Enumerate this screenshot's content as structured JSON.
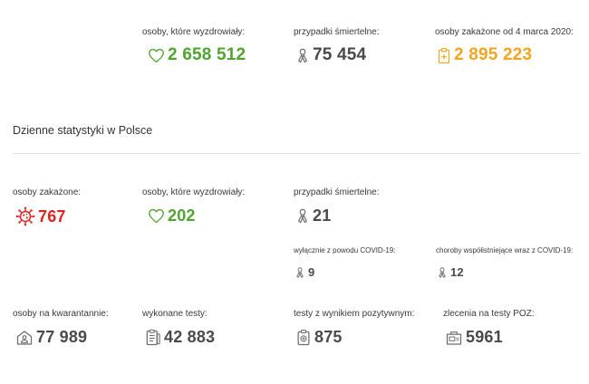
{
  "colors": {
    "recovered": "#4fa52f",
    "deaths": "#4a4a4a",
    "infected_total": "#f2a51f",
    "infected_daily": "#e0231f",
    "default_num": "#4a4a4a",
    "icon_grey": "#6e6e6e"
  },
  "totals": {
    "recovered": {
      "label": "osoby, które wyzdrowiały:",
      "value": "2 658 512",
      "icon": "heart-icon"
    },
    "deaths": {
      "label": "przypadki śmiertelne:",
      "value": "75 454",
      "icon": "ribbon-icon"
    },
    "infected": {
      "label": "osoby zakażone od 4 marca 2020:",
      "value": "2 895 223",
      "icon": "clipboard-cross-icon"
    }
  },
  "daily": {
    "title": "Dzienne statystyki w Polsce",
    "infected": {
      "label": "osoby zakażone:",
      "value": "767",
      "icon": "virus-icon"
    },
    "recovered": {
      "label": "osoby, które wyzdrowiały:",
      "value": "202",
      "icon": "heart-icon"
    },
    "deaths": {
      "label": "przypadki śmiertelne:",
      "value": "21",
      "icon": "ribbon-icon"
    },
    "deaths_covid_only": {
      "label": "wyłącznie z powodu COVID-19:",
      "value": "9",
      "icon": "ribbon-icon"
    },
    "deaths_comorbid": {
      "label": "choroby współistniejące wraz z COVID-19:",
      "value": "12",
      "icon": "ribbon-icon"
    },
    "quarantine": {
      "label": "osoby na kwarantannie:",
      "value": "77 989",
      "icon": "house-person-icon"
    },
    "tests": {
      "label": "wykonane testy:",
      "value": "42 883",
      "icon": "test-list-icon"
    },
    "positive_tests": {
      "label": "testy z wynikiem pozytywnym:",
      "value": "875",
      "icon": "positive-test-icon"
    },
    "poz_orders": {
      "label": "zlecenia na testy POZ:",
      "value": "5961",
      "icon": "poz-order-icon"
    }
  }
}
